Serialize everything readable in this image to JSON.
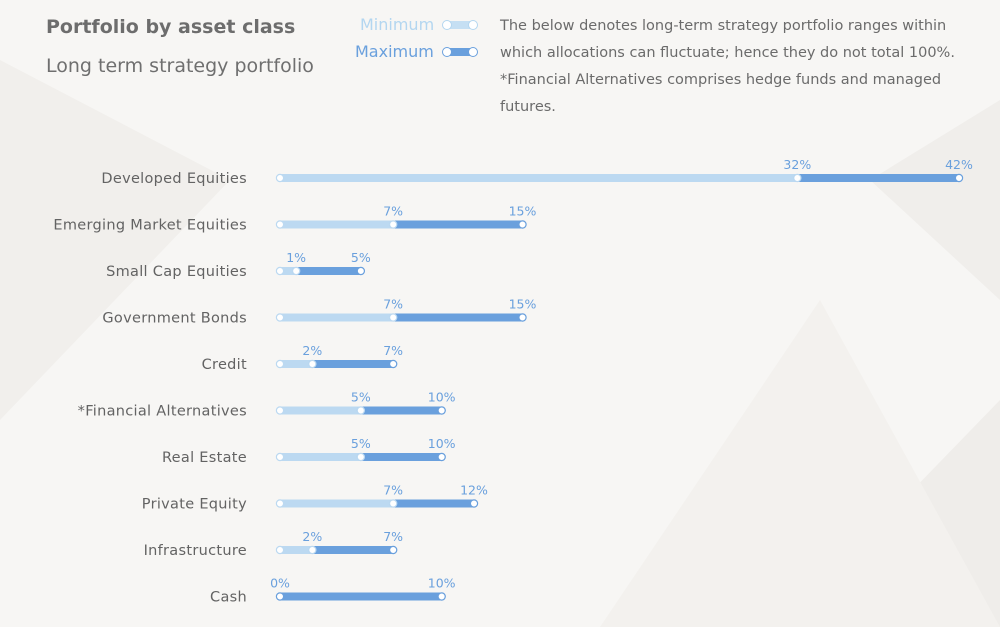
{
  "header": {
    "title": "Portfolio by asset class",
    "subtitle": "Long term strategy portfolio"
  },
  "legend": {
    "min_label": "Minimum",
    "max_label": "Maximum"
  },
  "note": {
    "line1": "The below denotes long-term strategy portfolio ranges within which allocations can fluctuate; hence they do not total 100%.",
    "line2": "*Financial Alternatives comprises hedge funds and managed futures."
  },
  "colors": {
    "min": "#bcd9f1",
    "max": "#6aa0dd",
    "text": "#6b6b6b"
  },
  "chart_data": {
    "type": "bar",
    "orientation": "horizontal-range",
    "title": "Portfolio by asset class",
    "subtitle": "Long term strategy portfolio",
    "unit": "%",
    "xlim": [
      0,
      42
    ],
    "categories": [
      "Developed Equities",
      "Emerging Market Equities",
      "Small Cap Equities",
      "Government Bonds",
      "Credit",
      "*Financial Alternatives",
      "Real Estate",
      "Private Equity",
      "Infrastructure",
      "Cash"
    ],
    "series": [
      {
        "name": "Minimum",
        "values": [
          32,
          7,
          1,
          7,
          2,
          5,
          5,
          7,
          2,
          0
        ]
      },
      {
        "name": "Maximum",
        "values": [
          42,
          15,
          5,
          15,
          7,
          10,
          10,
          12,
          7,
          10
        ]
      }
    ],
    "legend": "top"
  }
}
